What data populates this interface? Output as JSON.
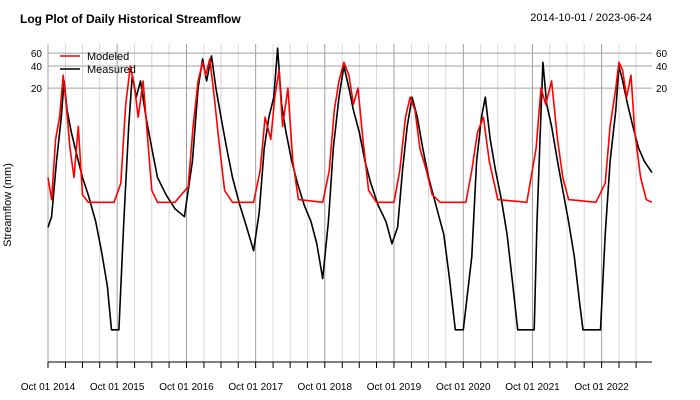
{
  "chart_data": {
    "type": "line",
    "title": "Log Plot of Daily Historical Streamflow",
    "date_range": "2014-10-01 / 2023-06-24",
    "ylabel": "Streamflow (mm)",
    "xlabel": "",
    "y_scale": "log",
    "ylim": [
      0.006,
      80
    ],
    "xlim": [
      "2014-10-01",
      "2023-06-24"
    ],
    "y_ticks": [
      20,
      40,
      60
    ],
    "x_ticks": [
      "Oct 01 2014",
      "Oct 01 2015",
      "Oct 01 2016",
      "Oct 01 2017",
      "Oct 01 2018",
      "Oct 01 2019",
      "Oct 01 2020",
      "Oct 01 2021",
      "Oct 01 2022"
    ],
    "grid": true,
    "legend_position": "top-left",
    "series": [
      {
        "name": "Modeled",
        "color": "#ff0000",
        "points": [
          [
            "2014-10-01",
            1.2
          ],
          [
            "2014-10-20",
            0.6
          ],
          [
            "2014-11-10",
            4
          ],
          [
            "2014-12-01",
            8
          ],
          [
            "2014-12-20",
            30
          ],
          [
            "2015-01-05",
            12
          ],
          [
            "2015-01-25",
            3
          ],
          [
            "2015-02-15",
            1.2
          ],
          [
            "2015-03-10",
            6
          ],
          [
            "2015-04-01",
            0.7
          ],
          [
            "2015-05-01",
            0.55
          ],
          [
            "2015-07-01",
            0.55
          ],
          [
            "2015-09-15",
            0.55
          ],
          [
            "2015-10-20",
            1.0
          ],
          [
            "2015-11-15",
            12
          ],
          [
            "2015-12-10",
            40
          ],
          [
            "2016-01-01",
            20
          ],
          [
            "2016-01-20",
            8
          ],
          [
            "2016-02-15",
            25
          ],
          [
            "2016-03-10",
            4
          ],
          [
            "2016-04-01",
            0.8
          ],
          [
            "2016-05-01",
            0.55
          ],
          [
            "2016-08-01",
            0.55
          ],
          [
            "2016-10-10",
            0.9
          ],
          [
            "2016-11-05",
            6
          ],
          [
            "2016-12-01",
            25
          ],
          [
            "2016-12-25",
            45
          ],
          [
            "2017-01-10",
            30
          ],
          [
            "2017-02-01",
            50
          ],
          [
            "2017-02-25",
            15
          ],
          [
            "2017-03-20",
            4
          ],
          [
            "2017-04-20",
            0.8
          ],
          [
            "2017-06-01",
            0.55
          ],
          [
            "2017-09-20",
            0.55
          ],
          [
            "2017-10-25",
            1.5
          ],
          [
            "2017-11-20",
            8
          ],
          [
            "2017-12-20",
            4
          ],
          [
            "2018-01-10",
            15
          ],
          [
            "2018-02-01",
            35
          ],
          [
            "2018-02-20",
            6
          ],
          [
            "2018-03-20",
            20
          ],
          [
            "2018-04-15",
            2
          ],
          [
            "2018-05-15",
            0.6
          ],
          [
            "2018-09-20",
            0.55
          ],
          [
            "2018-10-25",
            1.5
          ],
          [
            "2018-11-20",
            10
          ],
          [
            "2018-12-15",
            25
          ],
          [
            "2019-01-10",
            45
          ],
          [
            "2019-02-05",
            30
          ],
          [
            "2019-03-01",
            12
          ],
          [
            "2019-03-25",
            20
          ],
          [
            "2019-04-20",
            4
          ],
          [
            "2019-05-20",
            0.8
          ],
          [
            "2019-07-01",
            0.55
          ],
          [
            "2019-10-01",
            0.55
          ],
          [
            "2019-11-01",
            1.5
          ],
          [
            "2019-12-01",
            8
          ],
          [
            "2019-12-25",
            15
          ],
          [
            "2020-01-20",
            10
          ],
          [
            "2020-02-15",
            3
          ],
          [
            "2020-03-20",
            1.5
          ],
          [
            "2020-04-20",
            0.7
          ],
          [
            "2020-06-01",
            0.55
          ],
          [
            "2020-10-15",
            0.55
          ],
          [
            "2020-11-15",
            1.5
          ],
          [
            "2020-12-15",
            5
          ],
          [
            "2021-01-15",
            8
          ],
          [
            "2021-02-15",
            2
          ],
          [
            "2021-04-01",
            0.6
          ],
          [
            "2021-09-01",
            0.55
          ],
          [
            "2021-10-20",
            3
          ],
          [
            "2021-11-15",
            20
          ],
          [
            "2021-12-10",
            12
          ],
          [
            "2022-01-10",
            25
          ],
          [
            "2022-02-10",
            4
          ],
          [
            "2022-03-10",
            1.2
          ],
          [
            "2022-04-10",
            0.6
          ],
          [
            "2022-09-01",
            0.55
          ],
          [
            "2022-10-20",
            1.0
          ],
          [
            "2022-11-15",
            6
          ],
          [
            "2022-12-15",
            20
          ],
          [
            "2023-01-01",
            45
          ],
          [
            "2023-01-20",
            35
          ],
          [
            "2023-02-10",
            15
          ],
          [
            "2023-03-05",
            30
          ],
          [
            "2023-03-25",
            5
          ],
          [
            "2023-04-25",
            1.2
          ],
          [
            "2023-05-25",
            0.6
          ],
          [
            "2023-06-24",
            0.55
          ]
        ]
      },
      {
        "name": "Measured",
        "color": "#000000",
        "points": [
          [
            "2014-10-01",
            0.25
          ],
          [
            "2014-10-20",
            0.35
          ],
          [
            "2014-11-15",
            2
          ],
          [
            "2014-12-10",
            8
          ],
          [
            "2014-12-25",
            25
          ],
          [
            "2015-01-10",
            10
          ],
          [
            "2015-02-01",
            5
          ],
          [
            "2015-03-01",
            2.5
          ],
          [
            "2015-04-01",
            1.2
          ],
          [
            "2015-05-01",
            0.7
          ],
          [
            "2015-06-10",
            0.3
          ],
          [
            "2015-07-10",
            0.12
          ],
          [
            "2015-08-10",
            0.04
          ],
          [
            "2015-09-01",
            0.01
          ],
          [
            "2015-10-10",
            0.01
          ],
          [
            "2015-11-05",
            0.3
          ],
          [
            "2015-12-01",
            6
          ],
          [
            "2015-12-20",
            30
          ],
          [
            "2016-01-10",
            15
          ],
          [
            "2016-02-01",
            25
          ],
          [
            "2016-03-01",
            8
          ],
          [
            "2016-04-01",
            3
          ],
          [
            "2016-05-01",
            1.2
          ],
          [
            "2016-06-15",
            0.7
          ],
          [
            "2016-08-01",
            0.45
          ],
          [
            "2016-09-20",
            0.35
          ],
          [
            "2016-11-01",
            2
          ],
          [
            "2016-12-01",
            20
          ],
          [
            "2016-12-25",
            50
          ],
          [
            "2017-01-15",
            25
          ],
          [
            "2017-02-10",
            55
          ],
          [
            "2017-03-05",
            20
          ],
          [
            "2017-04-01",
            8
          ],
          [
            "2017-05-01",
            3
          ],
          [
            "2017-06-01",
            1.2
          ],
          [
            "2017-07-10",
            0.5
          ],
          [
            "2017-08-15",
            0.25
          ],
          [
            "2017-09-20",
            0.12
          ],
          [
            "2017-10-20",
            0.4
          ],
          [
            "2017-11-15",
            3
          ],
          [
            "2017-12-10",
            8
          ],
          [
            "2018-01-05",
            15
          ],
          [
            "2018-01-25",
            70
          ],
          [
            "2018-02-15",
            12
          ],
          [
            "2018-03-10",
            5
          ],
          [
            "2018-04-10",
            2
          ],
          [
            "2018-05-10",
            1
          ],
          [
            "2018-06-15",
            0.5
          ],
          [
            "2018-07-20",
            0.3
          ],
          [
            "2018-08-20",
            0.15
          ],
          [
            "2018-09-20",
            0.05
          ],
          [
            "2018-10-20",
            0.3
          ],
          [
            "2018-11-15",
            3
          ],
          [
            "2018-12-15",
            15
          ],
          [
            "2019-01-10",
            40
          ],
          [
            "2019-02-05",
            20
          ],
          [
            "2019-03-01",
            10
          ],
          [
            "2019-04-01",
            5
          ],
          [
            "2019-05-01",
            2
          ],
          [
            "2019-06-01",
            1
          ],
          [
            "2019-07-10",
            0.5
          ],
          [
            "2019-08-20",
            0.3
          ],
          [
            "2019-09-20",
            0.15
          ],
          [
            "2019-10-20",
            0.25
          ],
          [
            "2019-11-15",
            1.5
          ],
          [
            "2019-12-10",
            6
          ],
          [
            "2020-01-05",
            15
          ],
          [
            "2020-02-01",
            8
          ],
          [
            "2020-03-01",
            3
          ],
          [
            "2020-04-01",
            1.2
          ],
          [
            "2020-05-10",
            0.5
          ],
          [
            "2020-06-20",
            0.2
          ],
          [
            "2020-07-20",
            0.05
          ],
          [
            "2020-08-20",
            0.01
          ],
          [
            "2020-10-01",
            0.01
          ],
          [
            "2020-11-15",
            0.1
          ],
          [
            "2020-12-10",
            2
          ],
          [
            "2021-01-05",
            8
          ],
          [
            "2021-01-25",
            15
          ],
          [
            "2021-02-20",
            4
          ],
          [
            "2021-03-20",
            1.5
          ],
          [
            "2021-04-20",
            0.6
          ],
          [
            "2021-05-20",
            0.2
          ],
          [
            "2021-06-20",
            0.04
          ],
          [
            "2021-07-15",
            0.01
          ],
          [
            "2021-10-10",
            0.01
          ],
          [
            "2021-10-25",
            0.3
          ],
          [
            "2021-11-10",
            4
          ],
          [
            "2021-11-25",
            45
          ],
          [
            "2021-12-15",
            12
          ],
          [
            "2022-01-10",
            6
          ],
          [
            "2022-02-10",
            2
          ],
          [
            "2022-03-10",
            0.8
          ],
          [
            "2022-04-10",
            0.3
          ],
          [
            "2022-05-10",
            0.1
          ],
          [
            "2022-06-10",
            0.02
          ],
          [
            "2022-06-25",
            0.01
          ],
          [
            "2022-09-25",
            0.01
          ],
          [
            "2022-10-20",
            0.2
          ],
          [
            "2022-11-15",
            2
          ],
          [
            "2022-12-15",
            10
          ],
          [
            "2023-01-01",
            40
          ],
          [
            "2023-01-20",
            25
          ],
          [
            "2023-02-15",
            12
          ],
          [
            "2023-03-15",
            6
          ],
          [
            "2023-04-15",
            3
          ],
          [
            "2023-05-15",
            2
          ],
          [
            "2023-06-24",
            1.4
          ]
        ]
      }
    ]
  }
}
